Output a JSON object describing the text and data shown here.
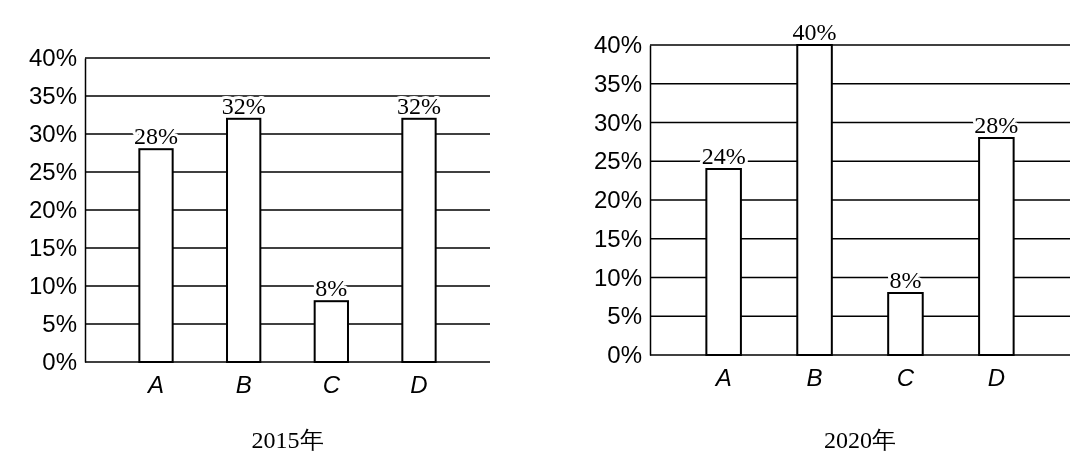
{
  "chart_data": [
    {
      "type": "bar",
      "xlabel": "2015年",
      "categories": [
        "A",
        "B",
        "C",
        "D"
      ],
      "values": [
        28,
        32,
        8,
        32
      ],
      "color": "#ffffff",
      "ylim": [
        0,
        40
      ],
      "yticks": [
        {
          "value": 0,
          "label": "0%"
        },
        {
          "value": 5,
          "label": "5%"
        },
        {
          "value": 10,
          "label": "10%"
        },
        {
          "value": 15,
          "label": "15%"
        },
        {
          "value": 20,
          "label": "20%"
        },
        {
          "value": 25,
          "label": "25%"
        },
        {
          "value": 30,
          "label": "30%"
        },
        {
          "value": 35,
          "label": "35%"
        },
        {
          "value": 40,
          "label": "40%"
        }
      ],
      "grid": "y",
      "data_labels": true,
      "value_labels": [
        "28%",
        "32%",
        "8%",
        "32%"
      ]
    },
    {
      "type": "bar",
      "xlabel": "2020年",
      "categories": [
        "A",
        "B",
        "C",
        "D"
      ],
      "values": [
        24,
        40,
        8,
        28
      ],
      "color": "#ffffff",
      "ylim": [
        0,
        40
      ],
      "yticks": [
        {
          "value": 0,
          "label": "0%"
        },
        {
          "value": 5,
          "label": "5%"
        },
        {
          "value": 10,
          "label": "10%"
        },
        {
          "value": 15,
          "label": "15%"
        },
        {
          "value": 20,
          "label": "20%"
        },
        {
          "value": 25,
          "label": "25%"
        },
        {
          "value": 30,
          "label": "30%"
        },
        {
          "value": 35,
          "label": "35%"
        },
        {
          "value": 40,
          "label": "40%"
        }
      ],
      "grid": "y",
      "data_labels": true,
      "value_labels": [
        "24%",
        "40%",
        "8%",
        "28%"
      ]
    }
  ]
}
